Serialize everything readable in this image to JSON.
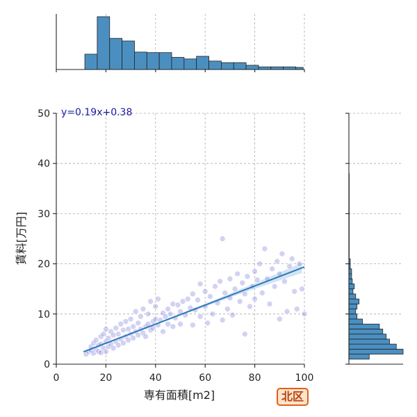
{
  "chart_data": {
    "type": "scatter",
    "xlabel": "専有面積[m2]",
    "ylabel": "賃料[万円]",
    "xlim": [
      0,
      100
    ],
    "ylim": [
      0,
      50
    ],
    "x_ticks": [
      0,
      20,
      40,
      60,
      80,
      100
    ],
    "y_ticks": [
      0,
      10,
      20,
      30,
      40,
      50
    ],
    "grid": true,
    "regression": {
      "equation_label": "y=0.19x+0.38",
      "slope": 0.19,
      "intercept": 0.38,
      "x_range": [
        11,
        100
      ],
      "color": "#2a7ab8",
      "band_color": "#9cc4e4"
    },
    "points": [
      [
        12,
        2.0
      ],
      [
        13,
        2.5
      ],
      [
        14,
        2.8
      ],
      [
        14,
        3.5
      ],
      [
        15,
        2.2
      ],
      [
        15,
        4.2
      ],
      [
        16,
        3.0
      ],
      [
        16,
        4.8
      ],
      [
        17,
        2.5
      ],
      [
        17,
        3.8
      ],
      [
        18,
        2.3
      ],
      [
        18,
        4.0
      ],
      [
        18,
        5.5
      ],
      [
        19,
        3.2
      ],
      [
        19,
        6.0
      ],
      [
        20,
        2.5
      ],
      [
        20,
        4.5
      ],
      [
        20,
        7.0
      ],
      [
        21,
        3.5
      ],
      [
        21,
        5.2
      ],
      [
        22,
        4.0
      ],
      [
        22,
        6.5
      ],
      [
        23,
        3.2
      ],
      [
        23,
        5.8
      ],
      [
        24,
        4.5
      ],
      [
        24,
        7.2
      ],
      [
        25,
        3.8
      ],
      [
        25,
        6.0
      ],
      [
        26,
        5.0
      ],
      [
        26,
        8.0
      ],
      [
        27,
        4.2
      ],
      [
        27,
        6.8
      ],
      [
        28,
        5.5
      ],
      [
        28,
        8.5
      ],
      [
        29,
        4.8
      ],
      [
        29,
        7.0
      ],
      [
        30,
        6.0
      ],
      [
        30,
        9.0
      ],
      [
        31,
        5.2
      ],
      [
        31,
        7.5
      ],
      [
        32,
        6.5
      ],
      [
        32,
        10.5
      ],
      [
        33,
        5.8
      ],
      [
        33,
        8.2
      ],
      [
        34,
        7.0
      ],
      [
        34,
        9.5
      ],
      [
        35,
        6.2
      ],
      [
        35,
        11.0
      ],
      [
        36,
        7.5
      ],
      [
        36,
        5.5
      ],
      [
        37,
        8.0
      ],
      [
        37,
        10.0
      ],
      [
        38,
        6.8
      ],
      [
        38,
        12.5
      ],
      [
        39,
        8.5
      ],
      [
        39,
        7.2
      ],
      [
        40,
        9.0
      ],
      [
        40,
        11.5
      ],
      [
        41,
        7.8
      ],
      [
        41,
        13.0
      ],
      [
        42,
        8.8
      ],
      [
        43,
        10.2
      ],
      [
        43,
        6.5
      ],
      [
        44,
        9.5
      ],
      [
        45,
        11.0
      ],
      [
        45,
        8.0
      ],
      [
        46,
        10.0
      ],
      [
        47,
        12.0
      ],
      [
        47,
        7.5
      ],
      [
        48,
        9.2
      ],
      [
        49,
        11.8
      ],
      [
        50,
        10.5
      ],
      [
        50,
        8.0
      ],
      [
        51,
        12.5
      ],
      [
        52,
        9.8
      ],
      [
        53,
        13.0
      ],
      [
        54,
        11.2
      ],
      [
        55,
        7.8
      ],
      [
        55,
        14.0
      ],
      [
        56,
        10.8
      ],
      [
        57,
        12.8
      ],
      [
        58,
        16.0
      ],
      [
        58,
        9.5
      ],
      [
        60,
        11.5
      ],
      [
        60,
        14.5
      ],
      [
        61,
        8.2
      ],
      [
        62,
        13.5
      ],
      [
        63,
        10.0
      ],
      [
        64,
        15.5
      ],
      [
        65,
        12.2
      ],
      [
        66,
        16.5
      ],
      [
        67,
        25.0
      ],
      [
        67,
        8.8
      ],
      [
        68,
        14.2
      ],
      [
        69,
        11.0
      ],
      [
        70,
        17.0
      ],
      [
        70,
        13.2
      ],
      [
        71,
        9.8
      ],
      [
        72,
        15.0
      ],
      [
        73,
        18.0
      ],
      [
        74,
        12.5
      ],
      [
        75,
        16.2
      ],
      [
        76,
        6.0
      ],
      [
        76,
        14.0
      ],
      [
        77,
        17.5
      ],
      [
        78,
        11.5
      ],
      [
        79,
        15.5
      ],
      [
        80,
        18.5
      ],
      [
        80,
        13.0
      ],
      [
        81,
        16.8
      ],
      [
        82,
        20.0
      ],
      [
        83,
        14.2
      ],
      [
        84,
        23.0
      ],
      [
        85,
        17.0
      ],
      [
        86,
        12.0
      ],
      [
        87,
        19.0
      ],
      [
        88,
        15.5
      ],
      [
        89,
        20.5
      ],
      [
        90,
        9.0
      ],
      [
        90,
        18.0
      ],
      [
        91,
        22.0
      ],
      [
        92,
        16.5
      ],
      [
        93,
        10.5
      ],
      [
        94,
        19.5
      ],
      [
        95,
        21.0
      ],
      [
        96,
        14.5
      ],
      [
        97,
        11.0
      ],
      [
        98,
        20.0
      ],
      [
        99,
        15.0
      ],
      [
        100,
        10.0
      ]
    ],
    "hist_x": {
      "bin_edges": [
        11.5,
        16.5,
        21.5,
        26.5,
        31.5,
        36.5,
        41.5,
        46.5,
        51.5,
        56.5,
        61.5,
        66.5,
        71.5,
        76.5,
        81.5,
        86.5,
        91.5,
        96.5,
        99.5
      ],
      "counts": [
        29,
        100,
        59,
        54,
        33,
        32,
        32,
        23,
        20,
        25,
        16,
        13,
        13,
        8,
        5,
        5,
        5,
        4
      ],
      "ylim": [
        0,
        100
      ],
      "ticks_x": [
        0,
        20,
        40,
        60,
        80,
        100
      ]
    },
    "hist_y": {
      "bin_edges": [
        0,
        1,
        2,
        3,
        4,
        5,
        6,
        7,
        8,
        9,
        10,
        11,
        12,
        13,
        14,
        15,
        16,
        17,
        18,
        19,
        20,
        21,
        30,
        38
      ],
      "counts": [
        0,
        30,
        80,
        70,
        60,
        55,
        50,
        45,
        20,
        12,
        10,
        12,
        15,
        10,
        6,
        8,
        5,
        4,
        4,
        2,
        2,
        0.5,
        0.5
      ],
      "xlim": [
        0,
        80
      ]
    }
  },
  "region_badge": "北区"
}
